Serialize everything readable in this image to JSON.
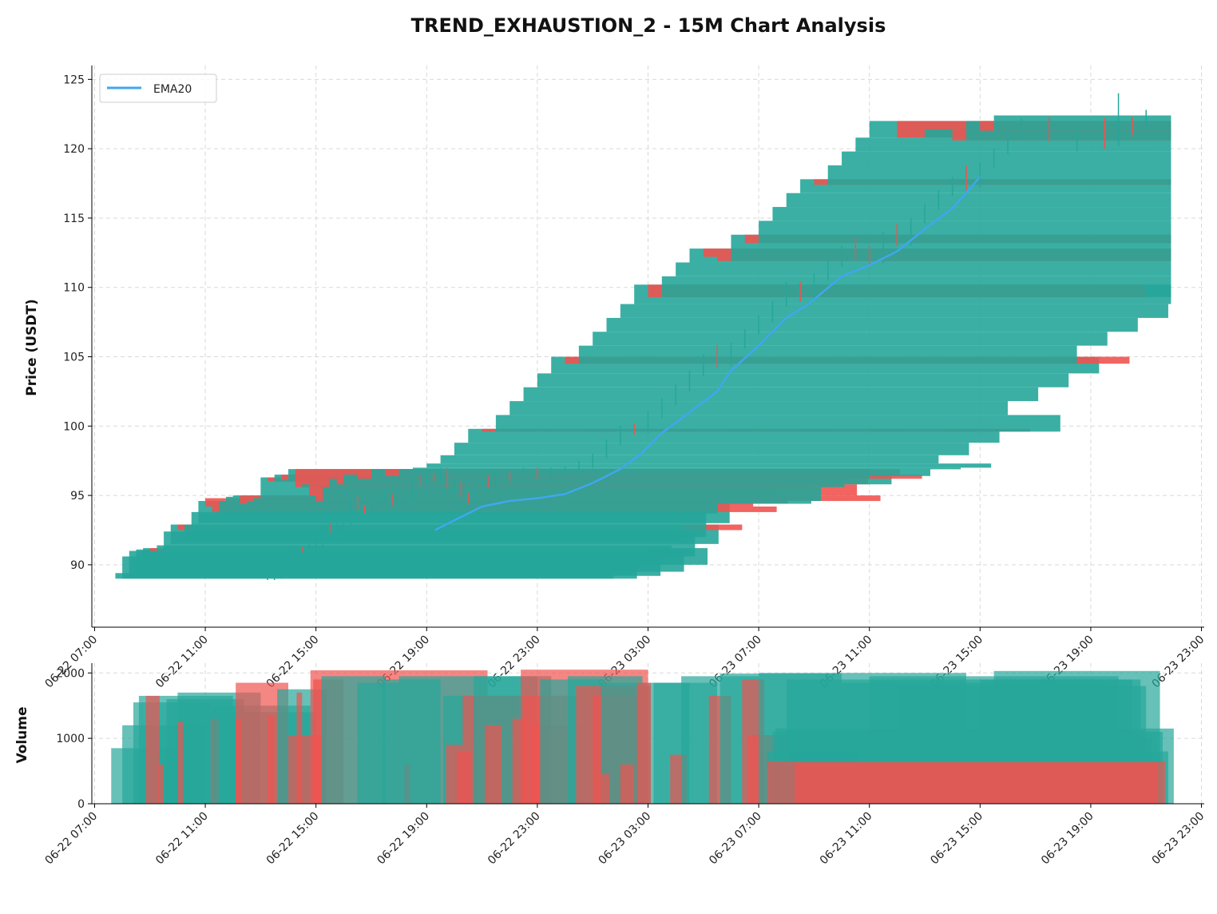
{
  "chart_data": {
    "type": "candlestick",
    "title": "TREND_EXHAUSTION_2 - 15M Chart Analysis",
    "price_panel": {
      "ylabel": "Price (USDT)",
      "ylim": [
        85.5,
        126
      ],
      "yticks": [
        90,
        95,
        100,
        105,
        110,
        115,
        120,
        125
      ],
      "legend": {
        "placement": "top-left",
        "entries": [
          {
            "name": "EMA20",
            "color": "#3fa7ee"
          }
        ]
      },
      "grid": true
    },
    "volume_panel": {
      "ylabel": "Volume",
      "ylim": [
        0,
        2150
      ],
      "yticks": [
        0,
        1000,
        2000
      ],
      "grid": true
    },
    "x_axis": {
      "range_hours": [
        -0.1,
        40.1
      ],
      "ticks": [
        {
          "hour": 0,
          "label": "06-22 07:00"
        },
        {
          "hour": 4,
          "label": "06-22 11:00"
        },
        {
          "hour": 8,
          "label": "06-22 15:00"
        },
        {
          "hour": 12,
          "label": "06-22 19:00"
        },
        {
          "hour": 16,
          "label": "06-22 23:00"
        },
        {
          "hour": 20,
          "label": "06-23 03:00"
        },
        {
          "hour": 24,
          "label": "06-23 07:00"
        },
        {
          "hour": 28,
          "label": "06-23 11:00"
        },
        {
          "hour": 32,
          "label": "06-23 15:00"
        },
        {
          "hour": 36,
          "label": "06-23 19:00"
        },
        {
          "hour": 40,
          "label": "06-23 23:00"
        }
      ]
    },
    "colors": {
      "up": "#26a69a",
      "down": "#ef5350",
      "ema": "#3fa7ee",
      "grid": "#d9d9d9"
    },
    "ema20": [
      [
        12.3,
        92.5
      ],
      [
        13.0,
        93.2
      ],
      [
        14.0,
        94.2
      ],
      [
        15.0,
        94.6
      ],
      [
        16.0,
        94.8
      ],
      [
        17.0,
        95.1
      ],
      [
        18.0,
        95.9
      ],
      [
        19.0,
        96.9
      ],
      [
        19.75,
        98.0
      ],
      [
        20.5,
        99.5
      ],
      [
        21.5,
        101.0
      ],
      [
        22.5,
        102.5
      ],
      [
        23.0,
        104.0
      ],
      [
        24.0,
        105.8
      ],
      [
        25.0,
        107.8
      ],
      [
        25.8,
        108.8
      ],
      [
        27.0,
        110.8
      ],
      [
        28.0,
        111.6
      ],
      [
        29.0,
        112.6
      ],
      [
        30.0,
        114.2
      ],
      [
        31.0,
        115.7
      ],
      [
        31.8,
        117.5
      ],
      [
        32.0,
        118.0
      ]
    ],
    "candles": [
      {
        "t": 0.75,
        "o": 89.0,
        "h": 89.6,
        "l": 88.9,
        "c": 89.4,
        "v": 850
      },
      {
        "t": 1.0,
        "o": 89.0,
        "h": 90.8,
        "l": 88.9,
        "c": 90.6,
        "v": 1000
      },
      {
        "t": 1.25,
        "o": 89.2,
        "h": 91.0,
        "l": 89.0,
        "c": 91.0,
        "v": 1200
      },
      {
        "t": 1.5,
        "o": 89.5,
        "h": 91.1,
        "l": 89.4,
        "c": 91.1,
        "v": 1550
      },
      {
        "t": 1.75,
        "o": 90.0,
        "h": 91.2,
        "l": 89.8,
        "c": 91.2,
        "v": 1650
      },
      {
        "t": 2.0,
        "o": 91.2,
        "h": 91.3,
        "l": 90.9,
        "c": 91.0,
        "v": 1600
      },
      {
        "t": 2.25,
        "o": 91.0,
        "h": 91.5,
        "l": 90.8,
        "c": 91.4,
        "v": 1650
      },
      {
        "t": 2.5,
        "o": 90.6,
        "h": 92.4,
        "l": 90.4,
        "c": 92.4,
        "v": 1400
      },
      {
        "t": 2.75,
        "o": 91.5,
        "h": 92.9,
        "l": 91.3,
        "c": 92.9,
        "v": 1550
      },
      {
        "t": 3.0,
        "o": 92.9,
        "h": 93.0,
        "l": 92.3,
        "c": 92.5,
        "v": 1250
      },
      {
        "t": 3.25,
        "o": 91.8,
        "h": 93.0,
        "l": 91.6,
        "c": 92.9,
        "v": 1700
      },
      {
        "t": 3.5,
        "o": 92.0,
        "h": 94.0,
        "l": 91.8,
        "c": 93.8,
        "v": 1600
      },
      {
        "t": 3.75,
        "o": 93.0,
        "h": 94.8,
        "l": 92.8,
        "c": 94.6,
        "v": 1450
      },
      {
        "t": 4.0,
        "o": 94.8,
        "h": 95.0,
        "l": 94.0,
        "c": 94.2,
        "v": 1350
      },
      {
        "t": 4.25,
        "o": 94.2,
        "h": 94.3,
        "l": 93.7,
        "c": 93.8,
        "v": 1600
      },
      {
        "t": 4.5,
        "o": 93.7,
        "h": 94.8,
        "l": 93.6,
        "c": 94.6,
        "v": 1300
      },
      {
        "t": 4.75,
        "o": 94.6,
        "h": 95.0,
        "l": 94.4,
        "c": 94.9,
        "v": 1700
      },
      {
        "t": 5.0,
        "o": 94.9,
        "h": 95.1,
        "l": 94.7,
        "c": 95.0,
        "v": 1500
      },
      {
        "t": 5.25,
        "o": 95.0,
        "h": 95.1,
        "l": 94.3,
        "c": 94.4,
        "v": 1550
      },
      {
        "t": 5.5,
        "o": 94.4,
        "h": 94.8,
        "l": 94.2,
        "c": 94.6,
        "v": 1650
      },
      {
        "t": 5.75,
        "o": 94.6,
        "h": 94.9,
        "l": 94.4,
        "c": 94.8,
        "v": 1500
      },
      {
        "t": 6.0,
        "o": 94.8,
        "h": 96.4,
        "l": 94.6,
        "c": 96.3,
        "v": 1850
      },
      {
        "t": 6.25,
        "o": 96.3,
        "h": 96.4,
        "l": 95.8,
        "c": 96.0,
        "v": 1750
      },
      {
        "t": 6.5,
        "o": 96.0,
        "h": 96.6,
        "l": 95.8,
        "c": 96.5,
        "v": 1800
      },
      {
        "t": 6.75,
        "o": 96.5,
        "h": 96.6,
        "l": 96.0,
        "c": 96.1,
        "v": 1700
      },
      {
        "t": 7.0,
        "o": 96.1,
        "h": 97.0,
        "l": 95.9,
        "c": 96.9,
        "v": 1850
      },
      {
        "t": 7.25,
        "o": 96.9,
        "h": 97.0,
        "l": 95.5,
        "c": 95.6,
        "v": 1550
      },
      {
        "t": 7.5,
        "o": 95.6,
        "h": 96.0,
        "l": 95.3,
        "c": 95.8,
        "v": 1900
      },
      {
        "t": 7.75,
        "o": 95.8,
        "h": 96.0,
        "l": 94.9,
        "c": 95.0,
        "v": 1700
      },
      {
        "t": 8.0,
        "o": 95.0,
        "h": 95.2,
        "l": 94.4,
        "c": 94.6,
        "v": 2000
      },
      {
        "t": 8.25,
        "o": 94.6,
        "h": 95.8,
        "l": 94.5,
        "c": 95.6,
        "v": 1900
      },
      {
        "t": 8.5,
        "o": 95.6,
        "h": 96.3,
        "l": 95.4,
        "c": 96.2,
        "v": 1850
      },
      {
        "t": 8.75,
        "o": 96.2,
        "h": 96.4,
        "l": 95.6,
        "c": 95.8,
        "v": 1950
      },
      {
        "t": 9.0,
        "o": 95.8,
        "h": 96.6,
        "l": 95.6,
        "c": 96.5,
        "v": 1800
      },
      {
        "t": 9.5,
        "o": 96.5,
        "h": 96.7,
        "l": 96.0,
        "c": 96.2,
        "v": 1900
      },
      {
        "t": 10.0,
        "o": 96.2,
        "h": 97.0,
        "l": 96.0,
        "c": 96.9,
        "v": 1850
      },
      {
        "t": 10.5,
        "o": 96.9,
        "h": 97.0,
        "l": 96.2,
        "c": 96.4,
        "v": 1950
      },
      {
        "t": 11.0,
        "o": 96.4,
        "h": 97.0,
        "l": 96.2,
        "c": 96.9,
        "v": 1800
      },
      {
        "t": 11.5,
        "o": 96.9,
        "h": 97.1,
        "l": 96.5,
        "c": 97.0,
        "v": 1950
      },
      {
        "t": 12.0,
        "o": 97.0,
        "h": 97.5,
        "l": 96.8,
        "c": 97.3,
        "v": 1900
      },
      {
        "t": 12.5,
        "o": 97.3,
        "h": 98.0,
        "l": 97.0,
        "c": 97.9,
        "v": 1950
      },
      {
        "t": 13.0,
        "o": 97.9,
        "h": 99.0,
        "l": 97.7,
        "c": 98.8,
        "v": 1650
      },
      {
        "t": 13.5,
        "o": 98.8,
        "h": 100.0,
        "l": 98.6,
        "c": 99.8,
        "v": 1950
      },
      {
        "t": 14.0,
        "o": 99.8,
        "h": 100.2,
        "l": 99.4,
        "c": 99.6,
        "v": 1900
      },
      {
        "t": 14.5,
        "o": 99.6,
        "h": 101.0,
        "l": 99.5,
        "c": 100.8,
        "v": 2000
      },
      {
        "t": 15.0,
        "o": 100.8,
        "h": 102.0,
        "l": 100.6,
        "c": 101.8,
        "v": 1950
      },
      {
        "t": 15.5,
        "o": 101.8,
        "h": 103.0,
        "l": 101.5,
        "c": 102.8,
        "v": 1900
      },
      {
        "t": 16.0,
        "o": 102.8,
        "h": 104.0,
        "l": 102.5,
        "c": 103.8,
        "v": 2000
      },
      {
        "t": 16.5,
        "o": 103.8,
        "h": 105.2,
        "l": 103.6,
        "c": 105.0,
        "v": 1950
      },
      {
        "t": 17.0,
        "o": 105.0,
        "h": 105.8,
        "l": 104.2,
        "c": 104.5,
        "v": 1650
      },
      {
        "t": 17.5,
        "o": 104.5,
        "h": 106.0,
        "l": 104.3,
        "c": 105.8,
        "v": 1750
      },
      {
        "t": 18.0,
        "o": 105.8,
        "h": 107.0,
        "l": 105.6,
        "c": 106.8,
        "v": 1600
      },
      {
        "t": 18.5,
        "o": 106.8,
        "h": 108.0,
        "l": 106.6,
        "c": 107.8,
        "v": 1850
      },
      {
        "t": 19.0,
        "o": 107.8,
        "h": 109.0,
        "l": 107.5,
        "c": 108.8,
        "v": 1750
      },
      {
        "t": 19.5,
        "o": 108.8,
        "h": 110.4,
        "l": 108.6,
        "c": 110.2,
        "v": 1850
      },
      {
        "t": 20.0,
        "o": 110.2,
        "h": 110.4,
        "l": 109.0,
        "c": 109.3,
        "v": 1750
      },
      {
        "t": 20.5,
        "o": 109.3,
        "h": 111.0,
        "l": 109.1,
        "c": 110.8,
        "v": 1900
      },
      {
        "t": 21.0,
        "o": 110.8,
        "h": 112.0,
        "l": 110.5,
        "c": 111.8,
        "v": 1850
      },
      {
        "t": 21.5,
        "o": 111.8,
        "h": 113.0,
        "l": 111.5,
        "c": 112.8,
        "v": 1950
      },
      {
        "t": 22.0,
        "o": 112.8,
        "h": 113.6,
        "l": 112.0,
        "c": 112.2,
        "v": 1800
      },
      {
        "t": 22.5,
        "o": 112.2,
        "h": 113.0,
        "l": 111.6,
        "c": 111.9,
        "v": 1900
      },
      {
        "t": 23.0,
        "o": 111.9,
        "h": 114.0,
        "l": 111.7,
        "c": 113.8,
        "v": 1950
      },
      {
        "t": 23.5,
        "o": 113.8,
        "h": 114.6,
        "l": 113.0,
        "c": 113.2,
        "v": 1900
      },
      {
        "t": 24.0,
        "o": 113.2,
        "h": 115.0,
        "l": 113.0,
        "c": 114.8,
        "v": 1950
      },
      {
        "t": 24.5,
        "o": 114.8,
        "h": 116.0,
        "l": 114.6,
        "c": 115.8,
        "v": 2000
      },
      {
        "t": 25.0,
        "o": 115.8,
        "h": 117.0,
        "l": 115.6,
        "c": 116.8,
        "v": 1950
      },
      {
        "t": 25.5,
        "o": 116.8,
        "h": 118.0,
        "l": 116.6,
        "c": 117.8,
        "v": 1900
      },
      {
        "t": 26.0,
        "o": 117.8,
        "h": 118.8,
        "l": 117.0,
        "c": 117.4,
        "v": 1850
      },
      {
        "t": 26.5,
        "o": 117.4,
        "h": 119.0,
        "l": 117.2,
        "c": 118.8,
        "v": 1900
      },
      {
        "t": 27.0,
        "o": 118.8,
        "h": 120.0,
        "l": 118.6,
        "c": 119.8,
        "v": 1950
      },
      {
        "t": 27.5,
        "o": 119.8,
        "h": 121.0,
        "l": 119.6,
        "c": 120.8,
        "v": 1850
      },
      {
        "t": 28.0,
        "o": 120.8,
        "h": 122.2,
        "l": 120.6,
        "c": 122.0,
        "v": 1900
      },
      {
        "t": 29.0,
        "o": 122.0,
        "h": 122.3,
        "l": 120.5,
        "c": 120.8,
        "v": 1800
      },
      {
        "t": 30.0,
        "o": 120.8,
        "h": 121.6,
        "l": 119.8,
        "c": 121.4,
        "v": 1850
      },
      {
        "t": 31.0,
        "o": 121.4,
        "h": 122.2,
        "l": 120.0,
        "c": 120.6,
        "v": 1700
      },
      {
        "t": 31.5,
        "o": 120.6,
        "h": 124.0,
        "l": 120.2,
        "c": 122.0,
        "v": 1950
      },
      {
        "t": 32.0,
        "o": 122.0,
        "h": 122.3,
        "l": 121.0,
        "c": 121.3,
        "v": 1900
      },
      {
        "t": 32.5,
        "o": 121.3,
        "h": 122.8,
        "l": 121.6,
        "c": 122.4,
        "v": 1800
      }
    ],
    "volume_footprints": [
      {
        "x0": 0.6,
        "x1": 3.5,
        "v": 850,
        "dir": "up"
      },
      {
        "x0": 1.0,
        "x1": 4.0,
        "v": 1200,
        "dir": "up"
      },
      {
        "x0": 1.4,
        "x1": 4.2,
        "v": 1550,
        "dir": "up"
      },
      {
        "x0": 1.6,
        "x1": 5.0,
        "v": 1650,
        "dir": "up"
      },
      {
        "x0": 1.85,
        "x1": 2.35,
        "v": 1650,
        "dir": "down"
      },
      {
        "x0": 2.3,
        "x1": 2.5,
        "v": 600,
        "dir": "down"
      },
      {
        "x0": 2.6,
        "x1": 5.4,
        "v": 1600,
        "dir": "up"
      },
      {
        "x0": 3.0,
        "x1": 6.0,
        "v": 1700,
        "dir": "up"
      },
      {
        "x0": 3.0,
        "x1": 3.2,
        "v": 1250,
        "dir": "down"
      },
      {
        "x0": 4.2,
        "x1": 4.5,
        "v": 1300,
        "dir": "down"
      },
      {
        "x0": 4.25,
        "x1": 7.8,
        "v": 1500,
        "dir": "up"
      },
      {
        "x0": 5.0,
        "x1": 8.0,
        "v": 1400,
        "dir": "up"
      },
      {
        "x0": 5.1,
        "x1": 5.3,
        "v": 1300,
        "dir": "down"
      },
      {
        "x0": 5.1,
        "x1": 7.0,
        "v": 1850,
        "dir": "down"
      },
      {
        "x0": 6.25,
        "x1": 6.5,
        "v": 1350,
        "dir": "down"
      },
      {
        "x0": 6.6,
        "x1": 8.4,
        "v": 1750,
        "dir": "up"
      },
      {
        "x0": 7.0,
        "x1": 8.2,
        "v": 1050,
        "dir": "down"
      },
      {
        "x0": 7.3,
        "x1": 7.5,
        "v": 1700,
        "dir": "down"
      },
      {
        "x0": 7.9,
        "x1": 9.0,
        "v": 1900,
        "dir": "down"
      },
      {
        "x0": 7.8,
        "x1": 14.2,
        "v": 2040,
        "dir": "down"
      },
      {
        "x0": 8.2,
        "x1": 10.5,
        "v": 1950,
        "dir": "up"
      },
      {
        "x0": 9.5,
        "x1": 11.0,
        "v": 1850,
        "dir": "up"
      },
      {
        "x0": 10.4,
        "x1": 12.5,
        "v": 1900,
        "dir": "up"
      },
      {
        "x0": 11.2,
        "x1": 11.4,
        "v": 600,
        "dir": "down"
      },
      {
        "x0": 11.0,
        "x1": 16.5,
        "v": 1950,
        "dir": "up"
      },
      {
        "x0": 12.6,
        "x1": 15.4,
        "v": 1650,
        "dir": "up"
      },
      {
        "x0": 12.7,
        "x1": 13.3,
        "v": 900,
        "dir": "down"
      },
      {
        "x0": 13.1,
        "x1": 13.6,
        "v": 800,
        "dir": "down"
      },
      {
        "x0": 13.3,
        "x1": 15.5,
        "v": 1650,
        "dir": "down"
      },
      {
        "x0": 13.7,
        "x1": 16.0,
        "v": 1950,
        "dir": "up"
      },
      {
        "x0": 14.1,
        "x1": 14.7,
        "v": 1200,
        "dir": "down"
      },
      {
        "x0": 15.1,
        "x1": 15.6,
        "v": 1300,
        "dir": "down"
      },
      {
        "x0": 15.4,
        "x1": 20.0,
        "v": 2050,
        "dir": "down"
      },
      {
        "x0": 15.5,
        "x1": 17.4,
        "v": 1650,
        "dir": "down"
      },
      {
        "x0": 15.8,
        "x1": 17.6,
        "v": 1200,
        "dir": "down"
      },
      {
        "x0": 16.1,
        "x1": 18.4,
        "v": 1900,
        "dir": "up"
      },
      {
        "x0": 17.1,
        "x1": 19.8,
        "v": 1950,
        "dir": "up"
      },
      {
        "x0": 17.4,
        "x1": 20.1,
        "v": 1800,
        "dir": "down"
      },
      {
        "x0": 18.0,
        "x1": 20.0,
        "v": 1650,
        "dir": "down"
      },
      {
        "x0": 18.3,
        "x1": 21.5,
        "v": 1850,
        "dir": "up"
      },
      {
        "x0": 18.3,
        "x1": 18.6,
        "v": 450,
        "dir": "down"
      },
      {
        "x0": 19.0,
        "x1": 19.5,
        "v": 600,
        "dir": "down"
      },
      {
        "x0": 19.6,
        "x1": 20.1,
        "v": 1850,
        "dir": "down"
      },
      {
        "x0": 20.2,
        "x1": 22.5,
        "v": 1850,
        "dir": "up"
      },
      {
        "x0": 20.8,
        "x1": 21.4,
        "v": 750,
        "dir": "down"
      },
      {
        "x0": 21.2,
        "x1": 24.0,
        "v": 1950,
        "dir": "up"
      },
      {
        "x0": 22.2,
        "x1": 23.0,
        "v": 1650,
        "dir": "down"
      },
      {
        "x0": 22.6,
        "x1": 27.0,
        "v": 1990,
        "dir": "up"
      },
      {
        "x0": 23.4,
        "x1": 24.2,
        "v": 1900,
        "dir": "down"
      },
      {
        "x0": 23.6,
        "x1": 27.6,
        "v": 1050,
        "dir": "down"
      },
      {
        "x0": 24.0,
        "x1": 31.5,
        "v": 2000,
        "dir": "up"
      },
      {
        "x0": 24.6,
        "x1": 39.0,
        "v": 1150,
        "dir": "up"
      },
      {
        "x0": 25.0,
        "x1": 37.5,
        "v": 1900,
        "dir": "up"
      },
      {
        "x0": 27.0,
        "x1": 36.5,
        "v": 1850,
        "dir": "up"
      },
      {
        "x0": 28.0,
        "x1": 37.0,
        "v": 1950,
        "dir": "up"
      },
      {
        "x0": 29.0,
        "x1": 38.0,
        "v": 1800,
        "dir": "up"
      },
      {
        "x0": 30.0,
        "x1": 38.2,
        "v": 1000,
        "dir": "up"
      },
      {
        "x0": 32.0,
        "x1": 37.8,
        "v": 1900,
        "dir": "up"
      },
      {
        "x0": 32.5,
        "x1": 38.5,
        "v": 2030,
        "dir": "up"
      },
      {
        "x0": 24.5,
        "x1": 38.6,
        "v": 1100,
        "dir": "up"
      },
      {
        "x0": 24.3,
        "x1": 38.8,
        "v": 800,
        "dir": "up"
      },
      {
        "x0": 25.3,
        "x1": 38.4,
        "v": 620,
        "dir": "down"
      },
      {
        "x0": 24.3,
        "x1": 38.7,
        "v": 650,
        "dir": "down"
      }
    ]
  }
}
